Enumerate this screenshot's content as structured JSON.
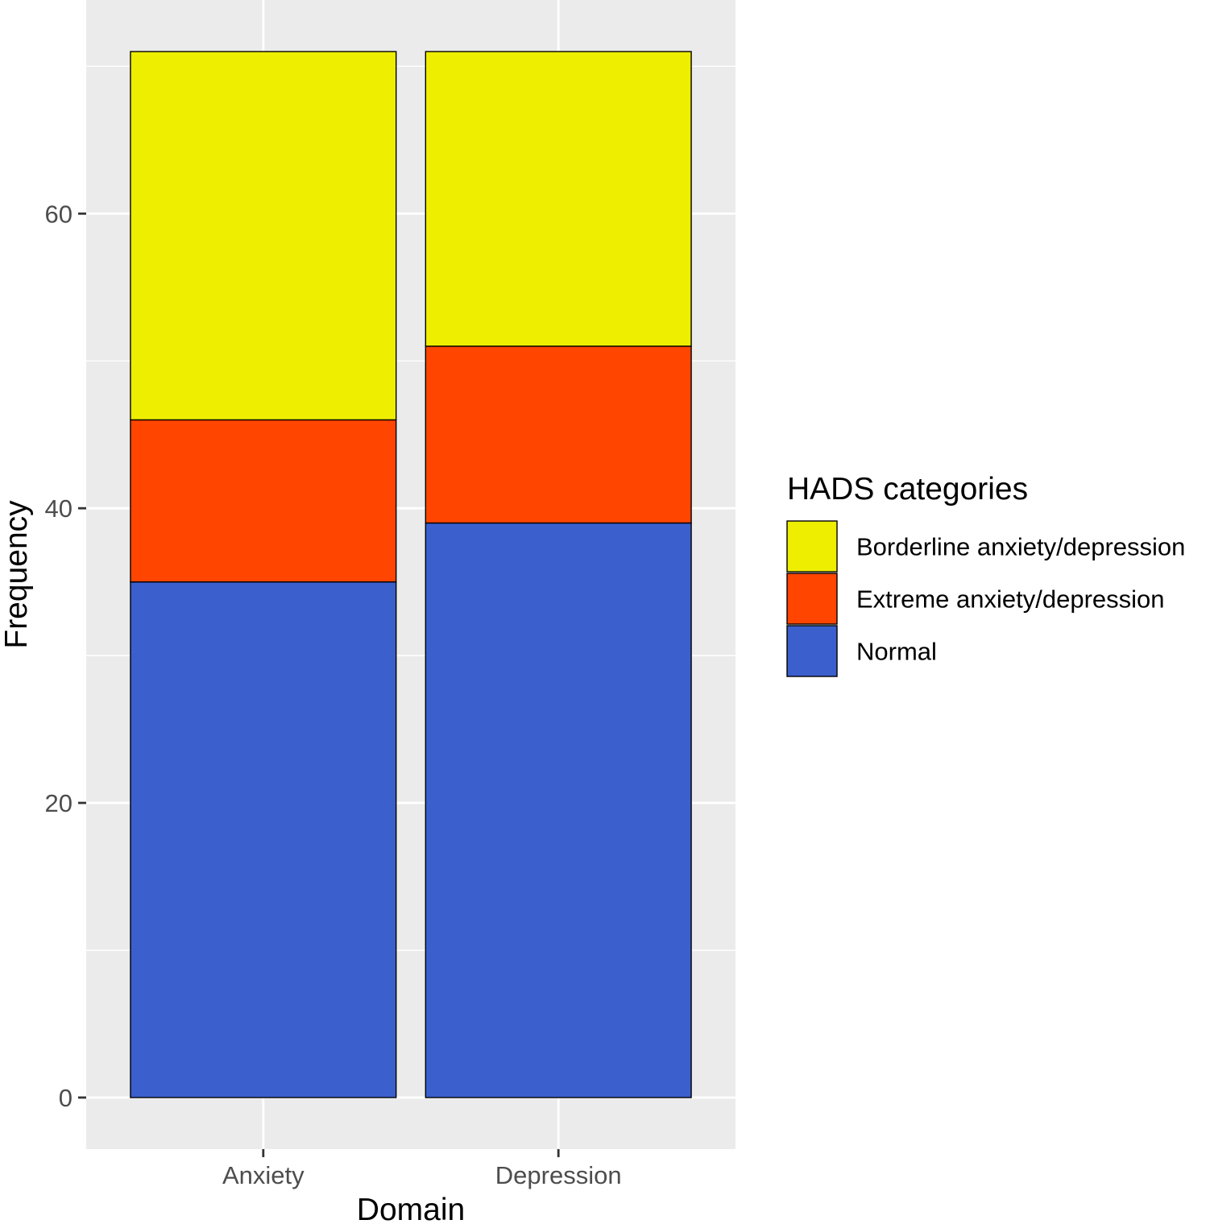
{
  "chart_data": {
    "type": "bar",
    "stacked": true,
    "xlabel": "Domain",
    "ylabel": "Frequency",
    "categories": [
      "Anxiety",
      "Depression"
    ],
    "ylim": [
      -3.5,
      74.5
    ],
    "yticks": [
      0,
      20,
      40,
      60
    ],
    "grid": true,
    "series": [
      {
        "name": "Normal",
        "color": "#3b5fcd",
        "values": [
          35,
          39
        ]
      },
      {
        "name": "Extreme anxiety/depression",
        "color": "#ff4500",
        "values": [
          11,
          12
        ]
      },
      {
        "name": "Borderline anxiety/depression",
        "color": "#eeee00",
        "values": [
          25,
          20
        ]
      }
    ],
    "legend": {
      "title": "HADS categories",
      "position": "right",
      "order": [
        "Borderline anxiety/depression",
        "Extreme anxiety/depression",
        "Normal"
      ]
    },
    "panel_background": "#ebebeb",
    "grid_color": "#ffffff",
    "bar_outline": "#000000"
  }
}
